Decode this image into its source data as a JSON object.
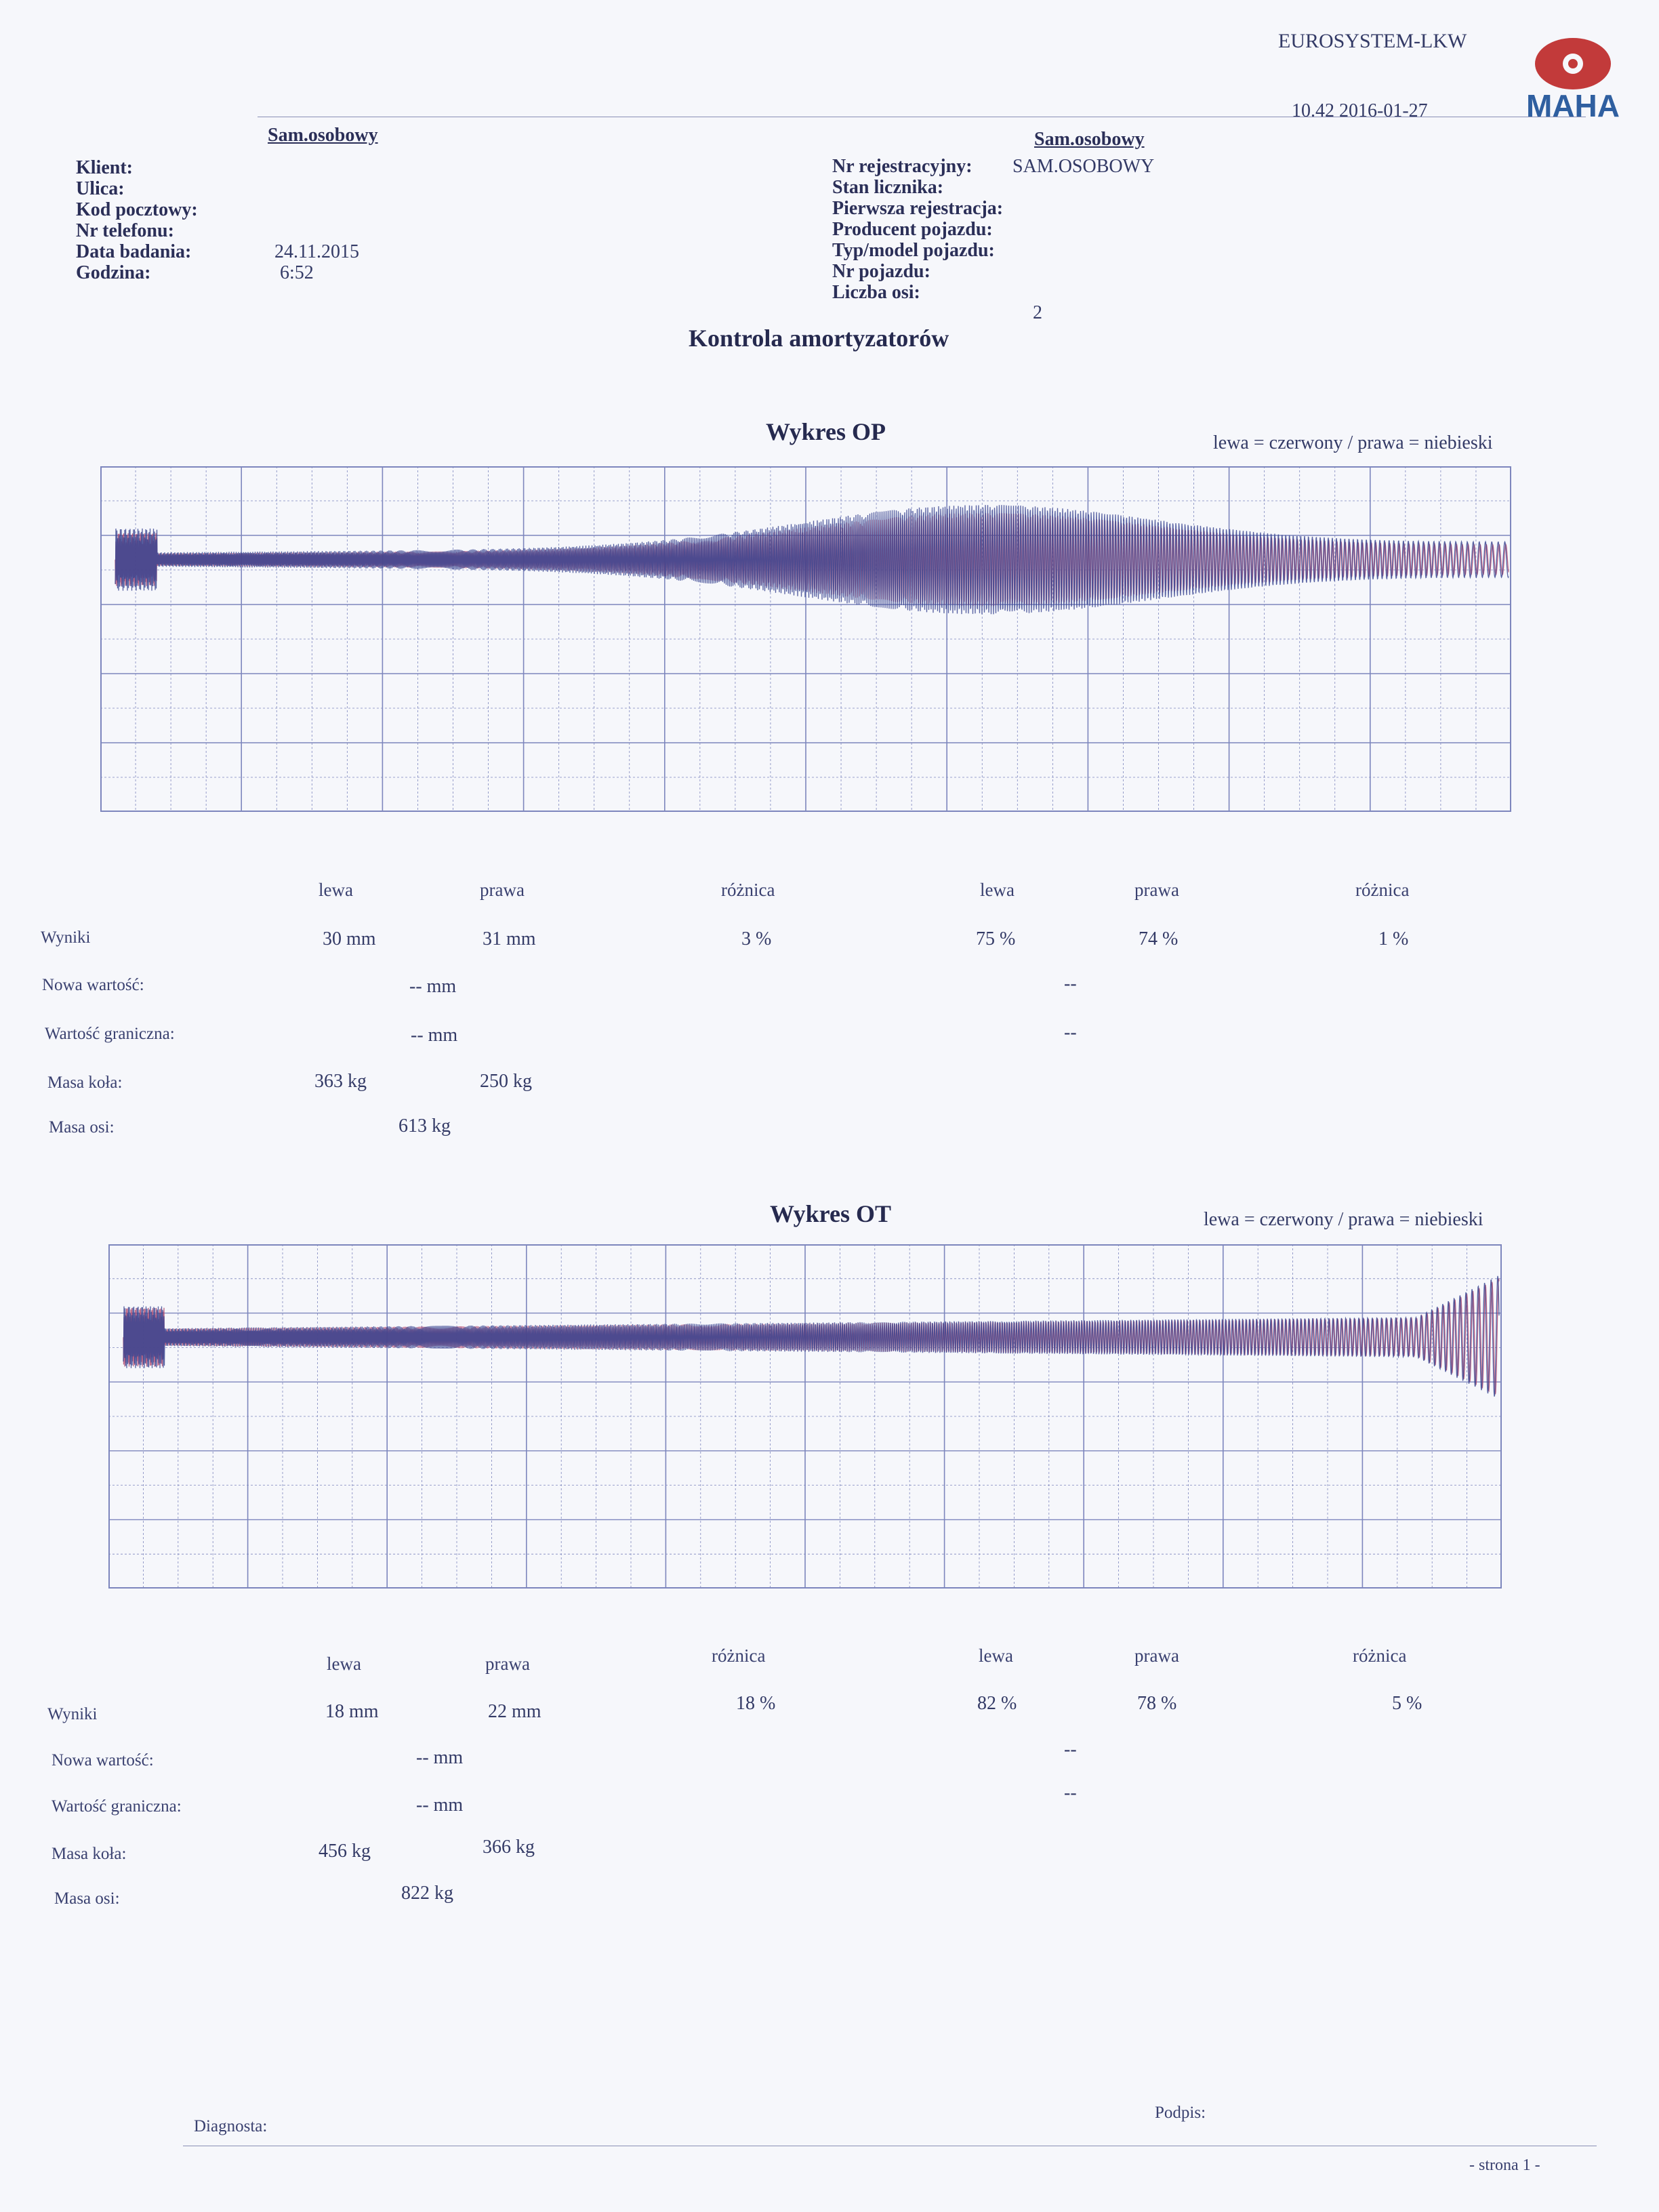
{
  "company": "EUROSYSTEM-LKW",
  "datetime": "10.42  2016-01-27",
  "logo_text": "MAHA",
  "left_header": {
    "heading": "Sam.osobowy",
    "labels": [
      "Klient:",
      "Ulica:",
      "Kod pocztowy:",
      "Nr telefonu:",
      "Data badania:",
      "Godzina:"
    ],
    "date_value": "24.11.2015",
    "time_value": "6:52"
  },
  "right_header": {
    "heading": "Sam.osobowy",
    "labels": [
      "Nr rejestracyjny:",
      "Stan licznika:",
      "Pierwsza rejestracja:",
      "Producent pojazdu:",
      "Typ/model pojazdu:",
      "Nr pojazdu:",
      "Liczba osi:"
    ],
    "registration_value": "SAM.OSOBOWY",
    "axles_value": "2"
  },
  "main_title": "Kontrola amortyzatorów",
  "sections": [
    {
      "chart_title": "Wykres OP",
      "legend": "lewa = czerwony / prawa = niebieski",
      "headers": [
        "lewa",
        "prawa",
        "różnica",
        "lewa",
        "prawa",
        "różnica"
      ],
      "row_labels": [
        "Wyniki",
        "Nowa wartość:",
        "Wartość graniczna:",
        "Masa koła:",
        "Masa osi:"
      ],
      "results": [
        "30  mm",
        "31  mm",
        "3  %",
        "75  %",
        "74  %",
        "1  %"
      ],
      "new_value": "--  mm",
      "new_value_pct": "--",
      "limit_value": "--  mm",
      "limit_value_pct": "--",
      "wheel_mass_left": "363   kg",
      "wheel_mass_right": "250   kg",
      "axle_mass": "613  kg"
    },
    {
      "chart_title": "Wykres OT",
      "legend": "lewa = czerwony / prawa = niebieski",
      "headers": [
        "lewa",
        "prawa",
        "różnica",
        "lewa",
        "prawa",
        "różnica"
      ],
      "row_labels": [
        "Wyniki",
        "Nowa wartość:",
        "Wartość graniczna:",
        "Masa koła:",
        "Masa osi:"
      ],
      "results": [
        "18  mm",
        "22  mm",
        "18  %",
        "82  %",
        "78  %",
        "5  %"
      ],
      "new_value": "--  mm",
      "new_value_pct": "--",
      "limit_value": "--  mm",
      "limit_value_pct": "--",
      "wheel_mass_left": "456   kg",
      "wheel_mass_right": "366   kg",
      "axle_mass": "822  kg"
    }
  ],
  "footer": {
    "diagnost": "Diagnosta:",
    "signature": "Podpis:",
    "page": "- strona 1 -"
  },
  "colors": {
    "left": "#b24a6e",
    "right": "#3a4590",
    "grid": "#7d86bd"
  },
  "chart_data": [
    {
      "type": "line",
      "title": "Wykres OP",
      "legend": "lewa = czerwony / prawa = niebieski",
      "grid": true
    },
    {
      "type": "line",
      "title": "Wykres OT",
      "legend": "lewa = czerwony / prawa = niebieski",
      "grid": true
    }
  ]
}
